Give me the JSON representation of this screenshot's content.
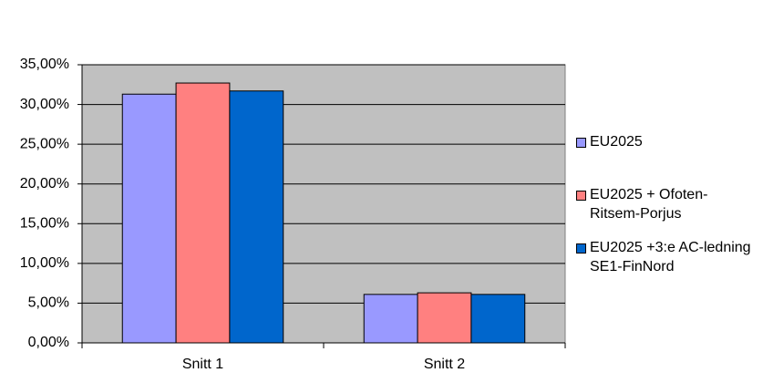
{
  "chart_data": {
    "type": "bar",
    "categories": [
      "Snitt 1",
      "Snitt 2"
    ],
    "series": [
      {
        "name": "EU2025",
        "color": "#9999ff",
        "values": [
          31.3,
          6.1
        ]
      },
      {
        "name": "EU2025 + Ofoten-Ritsem-Porjus",
        "color": "#ff8080",
        "values": [
          32.7,
          6.3
        ]
      },
      {
        "name": "EU2025 +3:e AC-ledning SE1-FinNord",
        "color": "#0066cc",
        "values": [
          31.7,
          6.1
        ]
      }
    ],
    "ylim": [
      0,
      35
    ],
    "yticks": [
      {
        "value": 0,
        "label": "0,00%"
      },
      {
        "value": 5,
        "label": "5,00%"
      },
      {
        "value": 10,
        "label": "10,00%"
      },
      {
        "value": 15,
        "label": "15,00%"
      },
      {
        "value": 20,
        "label": "20,00%"
      },
      {
        "value": 25,
        "label": "25,00%"
      },
      {
        "value": 30,
        "label": "30,00%"
      },
      {
        "value": 35,
        "label": "35,00%"
      }
    ],
    "grid": true,
    "background": "#c0c0c0",
    "legend": "right"
  }
}
